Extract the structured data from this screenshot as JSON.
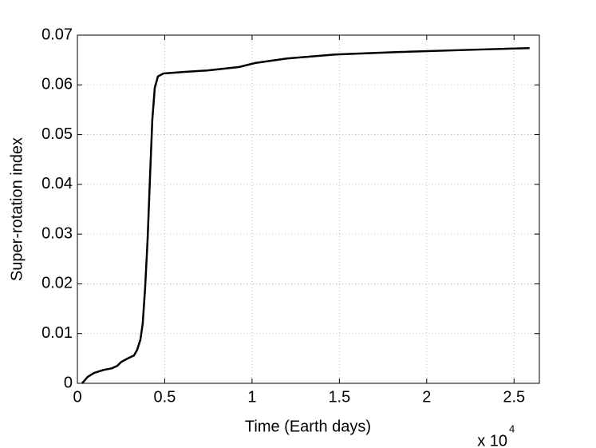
{
  "chart_data": {
    "type": "line",
    "x_label": "Time (Earth days)",
    "y_label": "Super-rotation index",
    "x_multiplier": "x 10",
    "x_multiplier_exponent": "4",
    "x": [
      0.027,
      0.059,
      0.096,
      0.151,
      0.196,
      0.228,
      0.251,
      0.288,
      0.324,
      0.342,
      0.361,
      0.374,
      0.388,
      0.402,
      0.416,
      0.429,
      0.443,
      0.461,
      0.493,
      0.607,
      0.744,
      0.927,
      1.018,
      1.2,
      1.475,
      1.84,
      2.297,
      2.589
    ],
    "series": [
      {
        "color": "#000000",
        "values": [
          0,
          0.0013,
          0.0021,
          0.0027,
          0.003,
          0.0035,
          0.0043,
          0.005,
          0.0056,
          0.0067,
          0.0088,
          0.012,
          0.0193,
          0.0289,
          0.0417,
          0.053,
          0.0594,
          0.0617,
          0.0623,
          0.0626,
          0.0629,
          0.0636,
          0.0644,
          0.0653,
          0.0661,
          0.0666,
          0.0671,
          0.0674
        ]
      }
    ],
    "xlim": [
      0,
      2.645
    ],
    "ylim": [
      0,
      0.07
    ],
    "xticks": [
      0,
      0.5,
      1,
      1.5,
      2,
      2.5
    ],
    "yticks": [
      0,
      0.01,
      0.02,
      0.03,
      0.04,
      0.05,
      0.06,
      0.07
    ],
    "grid": true
  }
}
